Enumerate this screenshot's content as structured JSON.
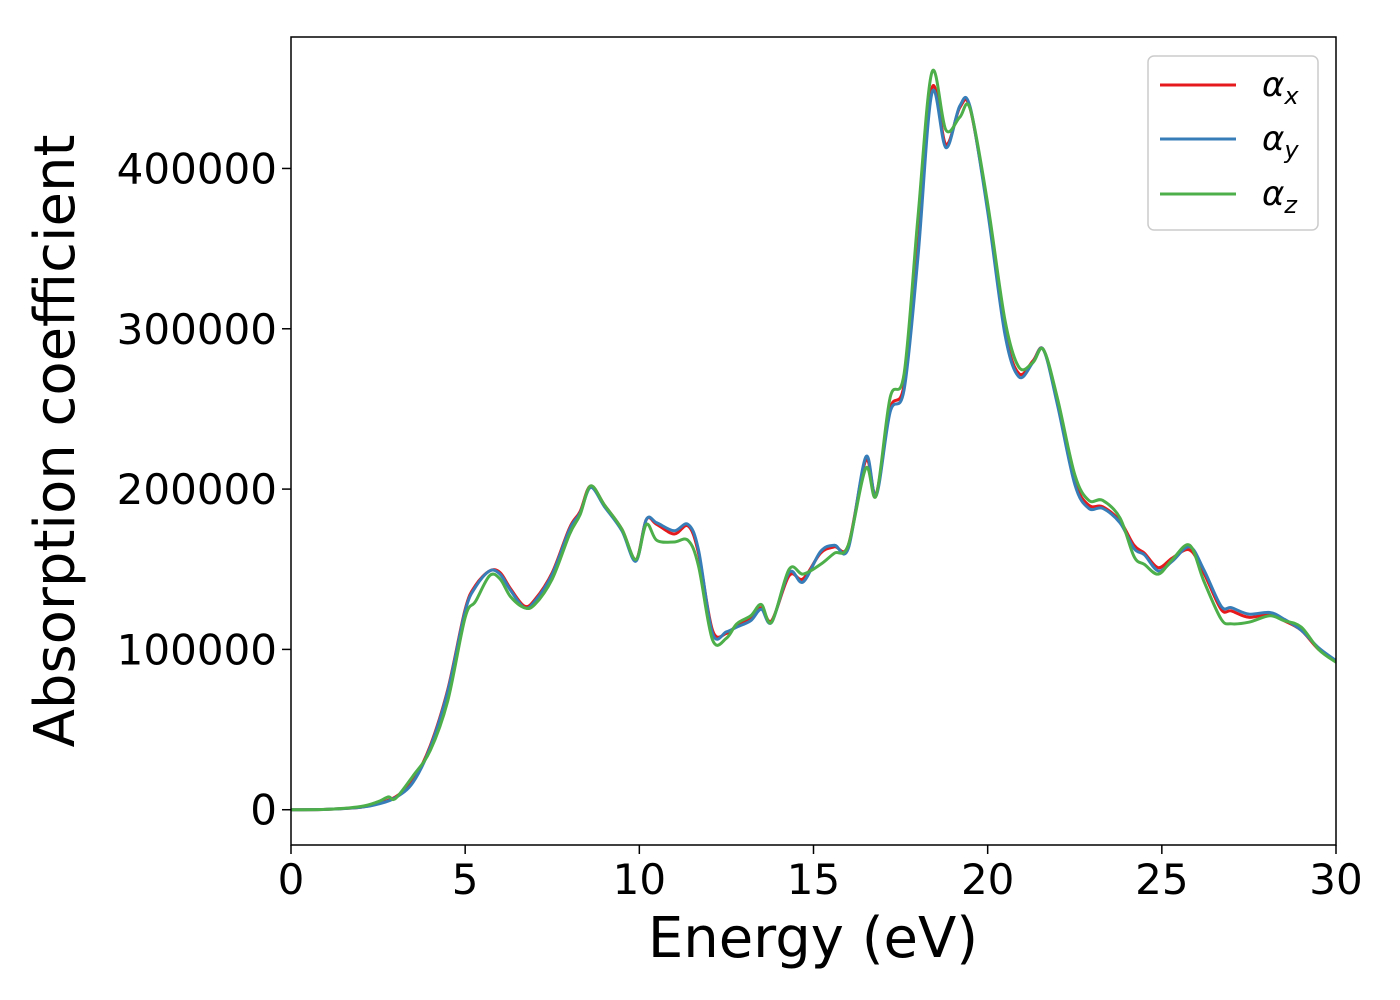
{
  "chart_data": {
    "type": "line",
    "title": "",
    "xlabel": "Energy (eV)",
    "ylabel": "Absorption coefficient",
    "xlim": [
      0,
      30
    ],
    "ylim": [
      -22000,
      482000
    ],
    "xticks": [
      0,
      5,
      10,
      15,
      20,
      25,
      30
    ],
    "yticks": [
      0,
      100000,
      200000,
      300000,
      400000
    ],
    "xtick_labels": [
      "0",
      "5",
      "10",
      "15",
      "20",
      "25",
      "30"
    ],
    "ytick_labels": [
      "0",
      "100000",
      "200000",
      "300000",
      "400000"
    ],
    "grid": false,
    "legend_position": "top-right",
    "series": [
      {
        "name": "α",
        "subscript": "x",
        "color": "#e41a1c",
        "points": [
          [
            0,
            0
          ],
          [
            1,
            200
          ],
          [
            2,
            1500
          ],
          [
            2.5,
            4000
          ],
          [
            3,
            8000
          ],
          [
            3.5,
            18000
          ],
          [
            4,
            40000
          ],
          [
            4.5,
            75000
          ],
          [
            5,
            125000
          ],
          [
            5.3,
            140000
          ],
          [
            5.7,
            149000
          ],
          [
            6,
            148000
          ],
          [
            6.3,
            138000
          ],
          [
            6.7,
            127000
          ],
          [
            7,
            131000
          ],
          [
            7.5,
            148000
          ],
          [
            8,
            176000
          ],
          [
            8.3,
            186000
          ],
          [
            8.6,
            202000
          ],
          [
            9,
            190000
          ],
          [
            9.5,
            175000
          ],
          [
            9.9,
            156000
          ],
          [
            10.2,
            181000
          ],
          [
            10.5,
            178000
          ],
          [
            11,
            172000
          ],
          [
            11.4,
            177000
          ],
          [
            11.7,
            160000
          ],
          [
            12.1,
            112000
          ],
          [
            12.5,
            110000
          ],
          [
            12.8,
            115000
          ],
          [
            13.2,
            120000
          ],
          [
            13.5,
            126000
          ],
          [
            13.8,
            118000
          ],
          [
            14.3,
            146000
          ],
          [
            14.7,
            144000
          ],
          [
            15.2,
            160000
          ],
          [
            15.6,
            164000
          ],
          [
            16,
            165000
          ],
          [
            16.5,
            218000
          ],
          [
            16.8,
            197000
          ],
          [
            17.2,
            250000
          ],
          [
            17.6,
            265000
          ],
          [
            18,
            350000
          ],
          [
            18.4,
            450000
          ],
          [
            18.8,
            415000
          ],
          [
            19.2,
            438000
          ],
          [
            19.5,
            437000
          ],
          [
            20,
            375000
          ],
          [
            20.5,
            298000
          ],
          [
            20.9,
            272000
          ],
          [
            21.3,
            280000
          ],
          [
            21.6,
            287000
          ],
          [
            22,
            255000
          ],
          [
            22.5,
            205000
          ],
          [
            22.9,
            190000
          ],
          [
            23.3,
            189000
          ],
          [
            23.8,
            180000
          ],
          [
            24.2,
            165000
          ],
          [
            24.5,
            160000
          ],
          [
            24.9,
            151000
          ],
          [
            25.3,
            157000
          ],
          [
            25.8,
            162000
          ],
          [
            26.2,
            148000
          ],
          [
            26.7,
            125000
          ],
          [
            27,
            124000
          ],
          [
            27.5,
            120000
          ],
          [
            28.1,
            122000
          ],
          [
            28.5,
            118000
          ],
          [
            29,
            112000
          ],
          [
            29.5,
            100000
          ],
          [
            30,
            93000
          ]
        ]
      },
      {
        "name": "α",
        "subscript": "y",
        "color": "#377eb8",
        "points": [
          [
            0,
            0
          ],
          [
            1,
            200
          ],
          [
            2,
            1500
          ],
          [
            2.5,
            3500
          ],
          [
            3,
            7500
          ],
          [
            3.5,
            17000
          ],
          [
            4,
            39000
          ],
          [
            4.5,
            74000
          ],
          [
            5,
            124000
          ],
          [
            5.3,
            139000
          ],
          [
            5.7,
            149000
          ],
          [
            6,
            147000
          ],
          [
            6.3,
            137000
          ],
          [
            6.7,
            126000
          ],
          [
            7,
            130000
          ],
          [
            7.5,
            147000
          ],
          [
            8,
            175000
          ],
          [
            8.3,
            185000
          ],
          [
            8.6,
            201000
          ],
          [
            9,
            189000
          ],
          [
            9.5,
            174000
          ],
          [
            9.9,
            155000
          ],
          [
            10.2,
            181000
          ],
          [
            10.5,
            179000
          ],
          [
            11,
            174000
          ],
          [
            11.4,
            178000
          ],
          [
            11.7,
            162000
          ],
          [
            12.1,
            110000
          ],
          [
            12.5,
            111000
          ],
          [
            12.8,
            114000
          ],
          [
            13.2,
            118000
          ],
          [
            13.5,
            125000
          ],
          [
            13.8,
            117000
          ],
          [
            14.3,
            148000
          ],
          [
            14.7,
            142000
          ],
          [
            15.2,
            161000
          ],
          [
            15.6,
            165000
          ],
          [
            16,
            163000
          ],
          [
            16.5,
            220000
          ],
          [
            16.8,
            196000
          ],
          [
            17.2,
            248000
          ],
          [
            17.6,
            262000
          ],
          [
            18,
            345000
          ],
          [
            18.4,
            447000
          ],
          [
            18.8,
            413000
          ],
          [
            19.2,
            439000
          ],
          [
            19.5,
            438000
          ],
          [
            20,
            373000
          ],
          [
            20.5,
            296000
          ],
          [
            20.9,
            270000
          ],
          [
            21.3,
            279000
          ],
          [
            21.6,
            287000
          ],
          [
            22,
            253000
          ],
          [
            22.5,
            203000
          ],
          [
            22.9,
            188000
          ],
          [
            23.3,
            188000
          ],
          [
            23.8,
            179000
          ],
          [
            24.2,
            163000
          ],
          [
            24.5,
            159000
          ],
          [
            24.9,
            149000
          ],
          [
            25.3,
            155000
          ],
          [
            25.8,
            164000
          ],
          [
            26.2,
            150000
          ],
          [
            26.7,
            127000
          ],
          [
            27,
            126000
          ],
          [
            27.5,
            122000
          ],
          [
            28.1,
            123000
          ],
          [
            28.5,
            119000
          ],
          [
            29,
            112000
          ],
          [
            29.5,
            101000
          ],
          [
            30,
            93000
          ]
        ]
      },
      {
        "name": "α",
        "subscript": "z",
        "color": "#4daf4a",
        "points": [
          [
            0,
            0
          ],
          [
            1,
            200
          ],
          [
            2,
            2000
          ],
          [
            2.5,
            5000
          ],
          [
            2.8,
            8000
          ],
          [
            3,
            7000
          ],
          [
            3.5,
            21000
          ],
          [
            4,
            37000
          ],
          [
            4.5,
            68000
          ],
          [
            5,
            120000
          ],
          [
            5.3,
            130000
          ],
          [
            5.7,
            146000
          ],
          [
            6,
            144000
          ],
          [
            6.3,
            133000
          ],
          [
            6.7,
            126000
          ],
          [
            7,
            128000
          ],
          [
            7.5,
            144000
          ],
          [
            8,
            172000
          ],
          [
            8.3,
            184000
          ],
          [
            8.6,
            202000
          ],
          [
            9,
            190000
          ],
          [
            9.5,
            175000
          ],
          [
            9.9,
            156000
          ],
          [
            10.2,
            178000
          ],
          [
            10.5,
            168000
          ],
          [
            11,
            167000
          ],
          [
            11.4,
            168000
          ],
          [
            11.7,
            152000
          ],
          [
            12.1,
            106000
          ],
          [
            12.5,
            107000
          ],
          [
            12.8,
            116000
          ],
          [
            13.2,
            121000
          ],
          [
            13.5,
            128000
          ],
          [
            13.8,
            117000
          ],
          [
            14.3,
            150000
          ],
          [
            14.7,
            147000
          ],
          [
            15.2,
            153000
          ],
          [
            15.6,
            160000
          ],
          [
            16,
            165000
          ],
          [
            16.5,
            213000
          ],
          [
            16.8,
            196000
          ],
          [
            17.2,
            257000
          ],
          [
            17.6,
            272000
          ],
          [
            18,
            370000
          ],
          [
            18.4,
            460000
          ],
          [
            18.8,
            424000
          ],
          [
            19.2,
            432000
          ],
          [
            19.5,
            437000
          ],
          [
            20,
            378000
          ],
          [
            20.5,
            305000
          ],
          [
            20.9,
            276000
          ],
          [
            21.3,
            279000
          ],
          [
            21.6,
            287000
          ],
          [
            22,
            257000
          ],
          [
            22.5,
            209000
          ],
          [
            22.9,
            193000
          ],
          [
            23.3,
            193000
          ],
          [
            23.8,
            182000
          ],
          [
            24.2,
            158000
          ],
          [
            24.5,
            153000
          ],
          [
            24.9,
            147000
          ],
          [
            25.3,
            156000
          ],
          [
            25.8,
            165000
          ],
          [
            26.2,
            143000
          ],
          [
            26.7,
            119000
          ],
          [
            27,
            116000
          ],
          [
            27.5,
            117000
          ],
          [
            28.1,
            121000
          ],
          [
            28.5,
            118000
          ],
          [
            29,
            114000
          ],
          [
            29.5,
            100000
          ],
          [
            30,
            92000
          ]
        ]
      }
    ]
  }
}
